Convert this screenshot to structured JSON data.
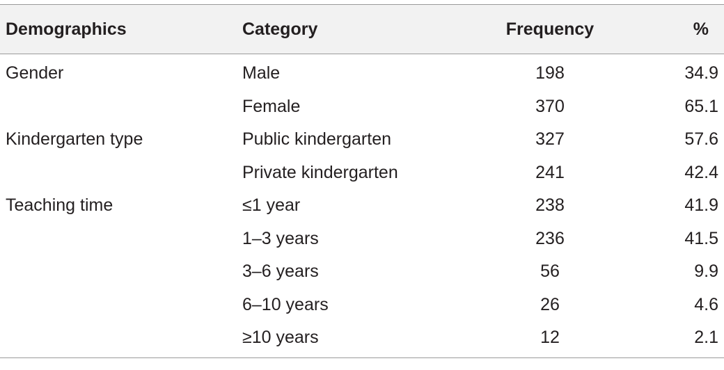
{
  "table": {
    "headers": {
      "demographics": "Demographics",
      "category": "Category",
      "frequency": "Frequency",
      "percent": "%"
    },
    "rows": [
      {
        "demographics": "Gender",
        "category": "Male",
        "frequency": "198",
        "percent": "34.9"
      },
      {
        "demographics": "",
        "category": "Female",
        "frequency": "370",
        "percent": "65.1"
      },
      {
        "demographics": "Kindergarten type",
        "category": "Public kindergarten",
        "frequency": "327",
        "percent": "57.6"
      },
      {
        "demographics": "",
        "category": "Private kindergarten",
        "frequency": "241",
        "percent": "42.4"
      },
      {
        "demographics": "Teaching time",
        "category": "≤1 year",
        "frequency": "238",
        "percent": "41.9"
      },
      {
        "demographics": "",
        "category": "1–3 years",
        "frequency": "236",
        "percent": "41.5"
      },
      {
        "demographics": "",
        "category": "3–6 years",
        "frequency": "56",
        "percent": "9.9"
      },
      {
        "demographics": "",
        "category": "6–10 years",
        "frequency": "26",
        "percent": "4.6"
      },
      {
        "demographics": "",
        "category": "≥10 years",
        "frequency": "12",
        "percent": "2.1"
      }
    ]
  }
}
